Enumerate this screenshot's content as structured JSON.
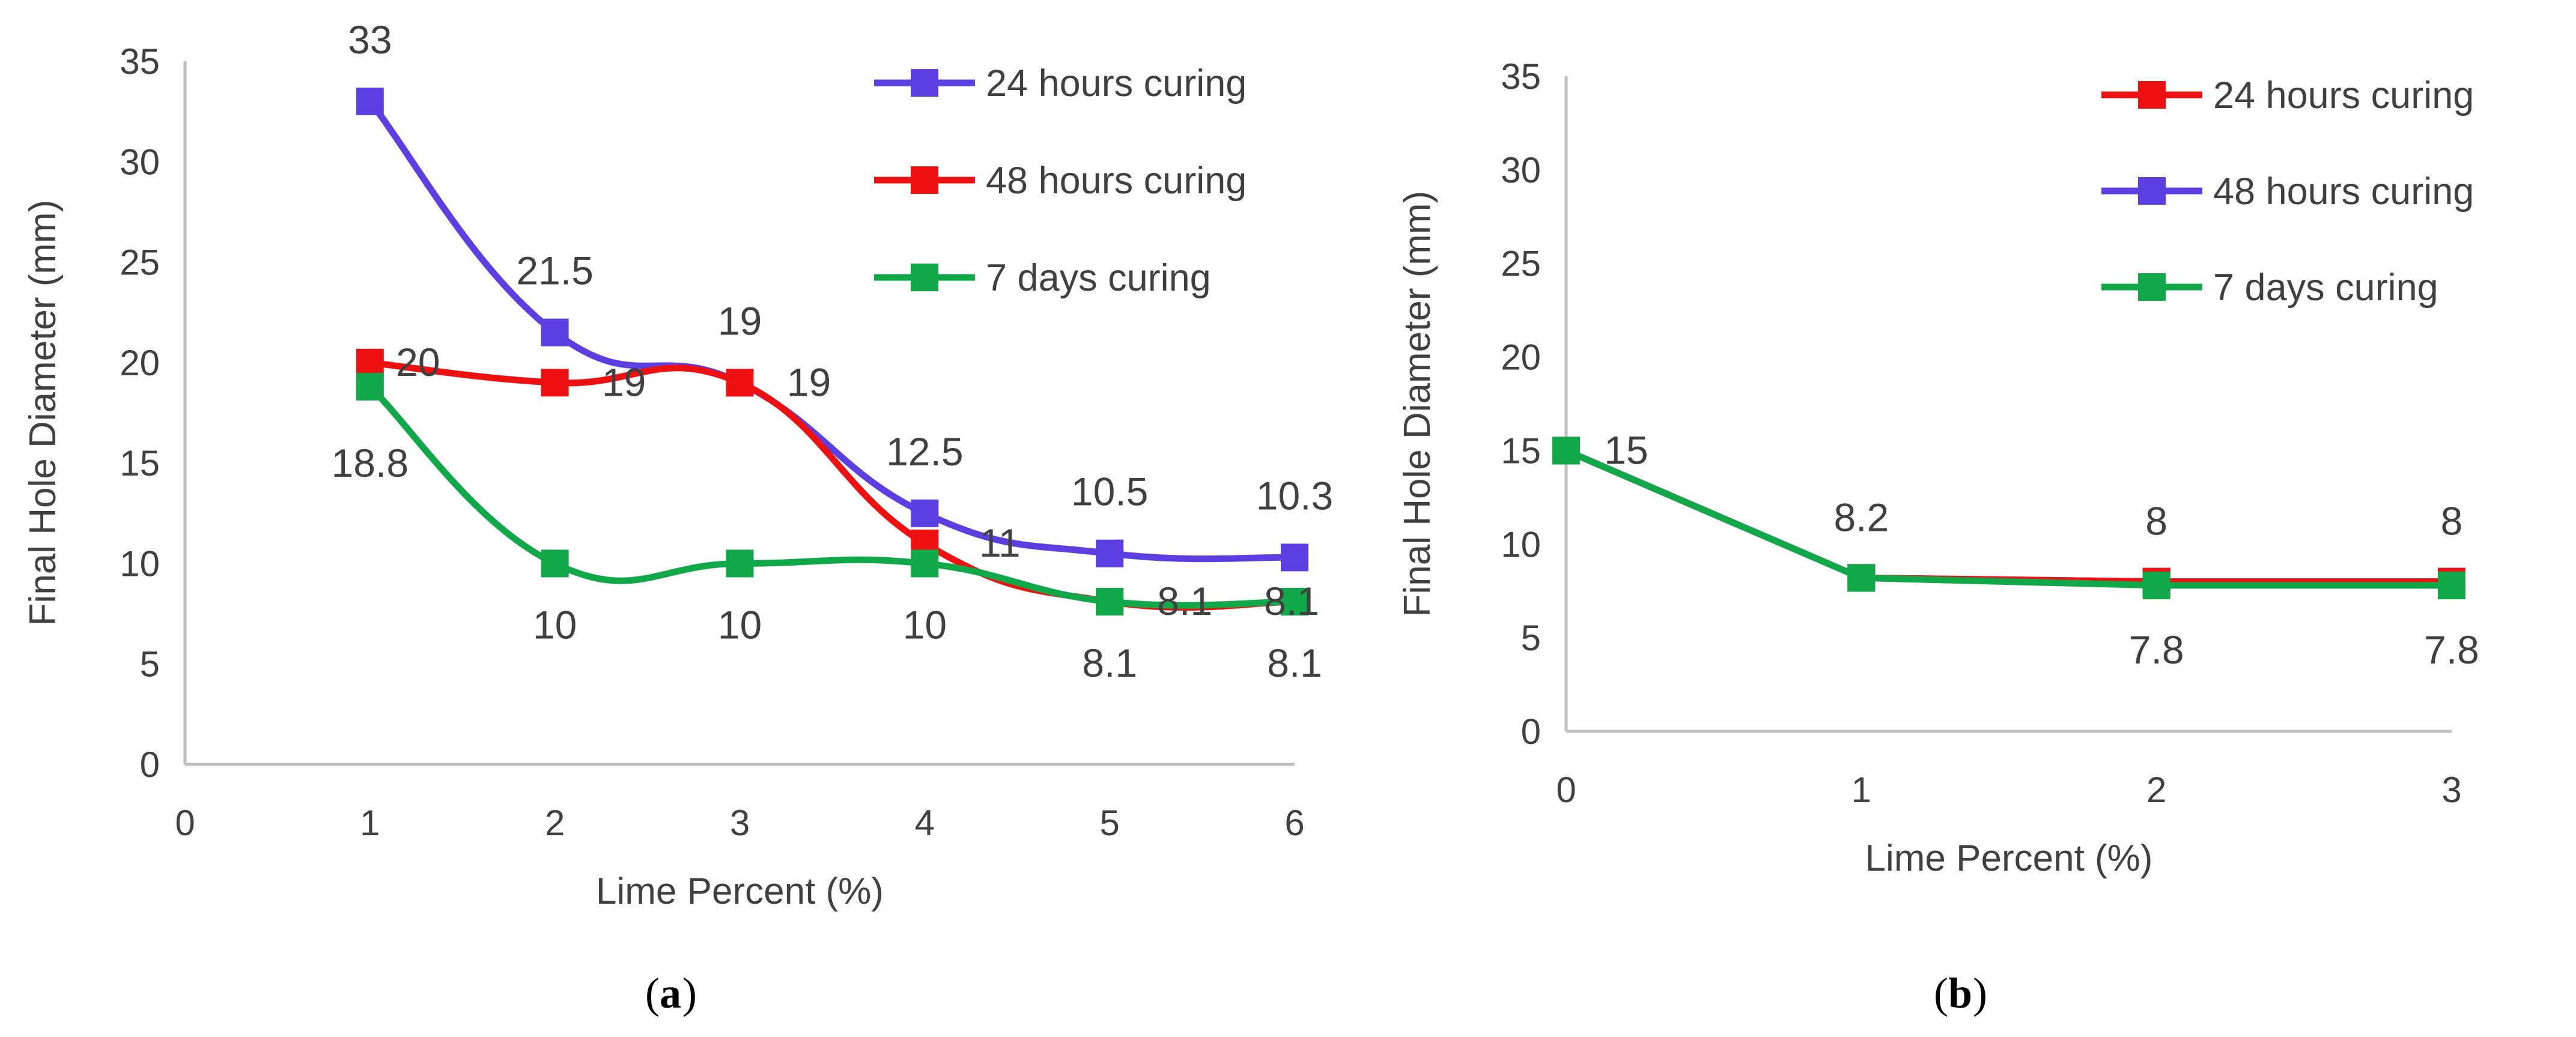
{
  "chart_data": [
    {
      "type": "line",
      "panel_label": "a",
      "x": [
        1,
        2,
        3,
        4,
        5,
        6
      ],
      "xlim": [
        0,
        6
      ],
      "ylim": [
        0,
        35
      ],
      "xticks": [
        "0",
        "1",
        "2",
        "3",
        "4",
        "5",
        "6"
      ],
      "yticks": [
        "0",
        "5",
        "10",
        "15",
        "20",
        "25",
        "30",
        "35"
      ],
      "xlabel": "Lime Percent (%)",
      "ylabel": "Final Hole Diameter (mm)",
      "grid": false,
      "legend_position": "top-right",
      "series": [
        {
          "name": "24 hours curing",
          "color": "#5b3fe0",
          "values": [
            33,
            21.5,
            19,
            12.5,
            10.5,
            10.3
          ],
          "labels": [
            "33",
            "21.5",
            "19",
            "12.5",
            "10.5",
            "10.3"
          ]
        },
        {
          "name": "48 hours curing",
          "color": "#ee1111",
          "values": [
            20,
            19,
            19,
            11,
            8.1,
            8.1
          ],
          "labels": [
            "20",
            "19",
            "19",
            "11",
            "8.1",
            "8.1"
          ]
        },
        {
          "name": "7 days curing",
          "color": "#11a84a",
          "values": [
            18.8,
            10,
            10,
            10,
            8.1,
            8.1
          ],
          "labels": [
            "18.8",
            "10",
            "10",
            "10",
            "8.1",
            "8.1"
          ]
        }
      ]
    },
    {
      "type": "line",
      "panel_label": "b",
      "x": [
        0,
        1,
        2,
        3
      ],
      "xlim": [
        0,
        3
      ],
      "ylim": [
        0,
        35
      ],
      "xticks": [
        "0",
        "1",
        "2",
        "3"
      ],
      "yticks": [
        "0",
        "5",
        "10",
        "15",
        "20",
        "25",
        "30",
        "35"
      ],
      "xlabel": "Lime Percent (%)",
      "ylabel": "Final Hole Diameter (mm)",
      "grid": false,
      "legend_position": "top-right",
      "series": [
        {
          "name": "24 hours curing",
          "color": "#ee1111",
          "values": [
            15,
            8.2,
            8,
            8
          ],
          "labels": [
            "",
            "",
            "8",
            "8"
          ]
        },
        {
          "name": "48 hours curing",
          "color": "#5b3fe0",
          "values": [
            15,
            8.2,
            8,
            8
          ],
          "labels": [
            "",
            "",
            "",
            ""
          ]
        },
        {
          "name": "7 days curing",
          "color": "#11a84a",
          "values": [
            15,
            8.2,
            7.8,
            7.8
          ],
          "labels": [
            "15",
            "8.2",
            "7.8",
            "7.8"
          ]
        }
      ]
    }
  ]
}
